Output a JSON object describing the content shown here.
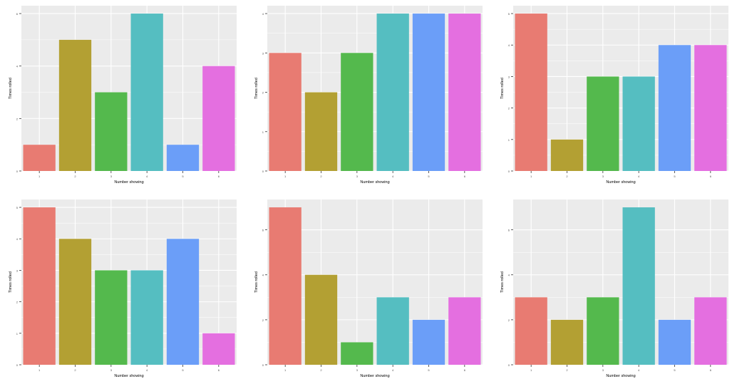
{
  "colors": {
    "panel_bg": "#ebebeb",
    "grid": "#ffffff",
    "axis_text": "#4d4d4d",
    "bar_fills": [
      "#e87b72",
      "#b3a033",
      "#54b94d",
      "#55bec1",
      "#6b9ef8",
      "#e46fe0"
    ]
  },
  "chart_data": [
    {
      "type": "bar",
      "categories": [
        "1",
        "2",
        "3",
        "4",
        "5",
        "6"
      ],
      "values": [
        1,
        5,
        3,
        6,
        1,
        4
      ],
      "xlabel": "Number showing",
      "ylabel": "Times rolled",
      "yticks": [
        0,
        2,
        4,
        6
      ],
      "ylim": [
        0,
        6.3
      ],
      "grid": true,
      "legend": "none"
    },
    {
      "type": "bar",
      "categories": [
        "1",
        "2",
        "3",
        "4",
        "5",
        "6"
      ],
      "values": [
        3,
        2,
        3,
        4,
        4,
        4
      ],
      "xlabel": "Number showing",
      "ylabel": "Times rolled",
      "yticks": [
        0,
        1,
        2,
        3,
        4
      ],
      "ylim": [
        0,
        4.2
      ],
      "grid": true,
      "legend": "none"
    },
    {
      "type": "bar",
      "categories": [
        "1",
        "2",
        "3",
        "4",
        "5",
        "6"
      ],
      "values": [
        5,
        1,
        3,
        3,
        4,
        4
      ],
      "xlabel": "Number showing",
      "ylabel": "Times rolled",
      "yticks": [
        0,
        1,
        2,
        3,
        4,
        5
      ],
      "ylim": [
        0,
        5.25
      ],
      "grid": true,
      "legend": "none"
    },
    {
      "type": "bar",
      "categories": [
        "1",
        "2",
        "3",
        "4",
        "5",
        "6"
      ],
      "values": [
        5,
        4,
        3,
        3,
        4,
        1
      ],
      "xlabel": "Number showing",
      "ylabel": "Times rolled",
      "yticks": [
        0,
        1,
        2,
        3,
        4,
        5
      ],
      "ylim": [
        0,
        5.25
      ],
      "grid": true,
      "legend": "none"
    },
    {
      "type": "bar",
      "categories": [
        "1",
        "2",
        "3",
        "4",
        "5",
        "6"
      ],
      "values": [
        7,
        4,
        1,
        3,
        2,
        3
      ],
      "xlabel": "Number showing",
      "ylabel": "Times rolled",
      "yticks": [
        0,
        2,
        4,
        6
      ],
      "ylim": [
        0,
        7.35
      ],
      "grid": true,
      "legend": "none"
    },
    {
      "type": "bar",
      "categories": [
        "1",
        "2",
        "3",
        "4",
        "5",
        "6"
      ],
      "values": [
        3,
        2,
        3,
        7,
        2,
        3
      ],
      "xlabel": "Number showing",
      "ylabel": "Times rolled",
      "yticks": [
        0,
        2,
        4,
        6
      ],
      "ylim": [
        0,
        7.35
      ],
      "grid": true,
      "legend": "none"
    }
  ]
}
